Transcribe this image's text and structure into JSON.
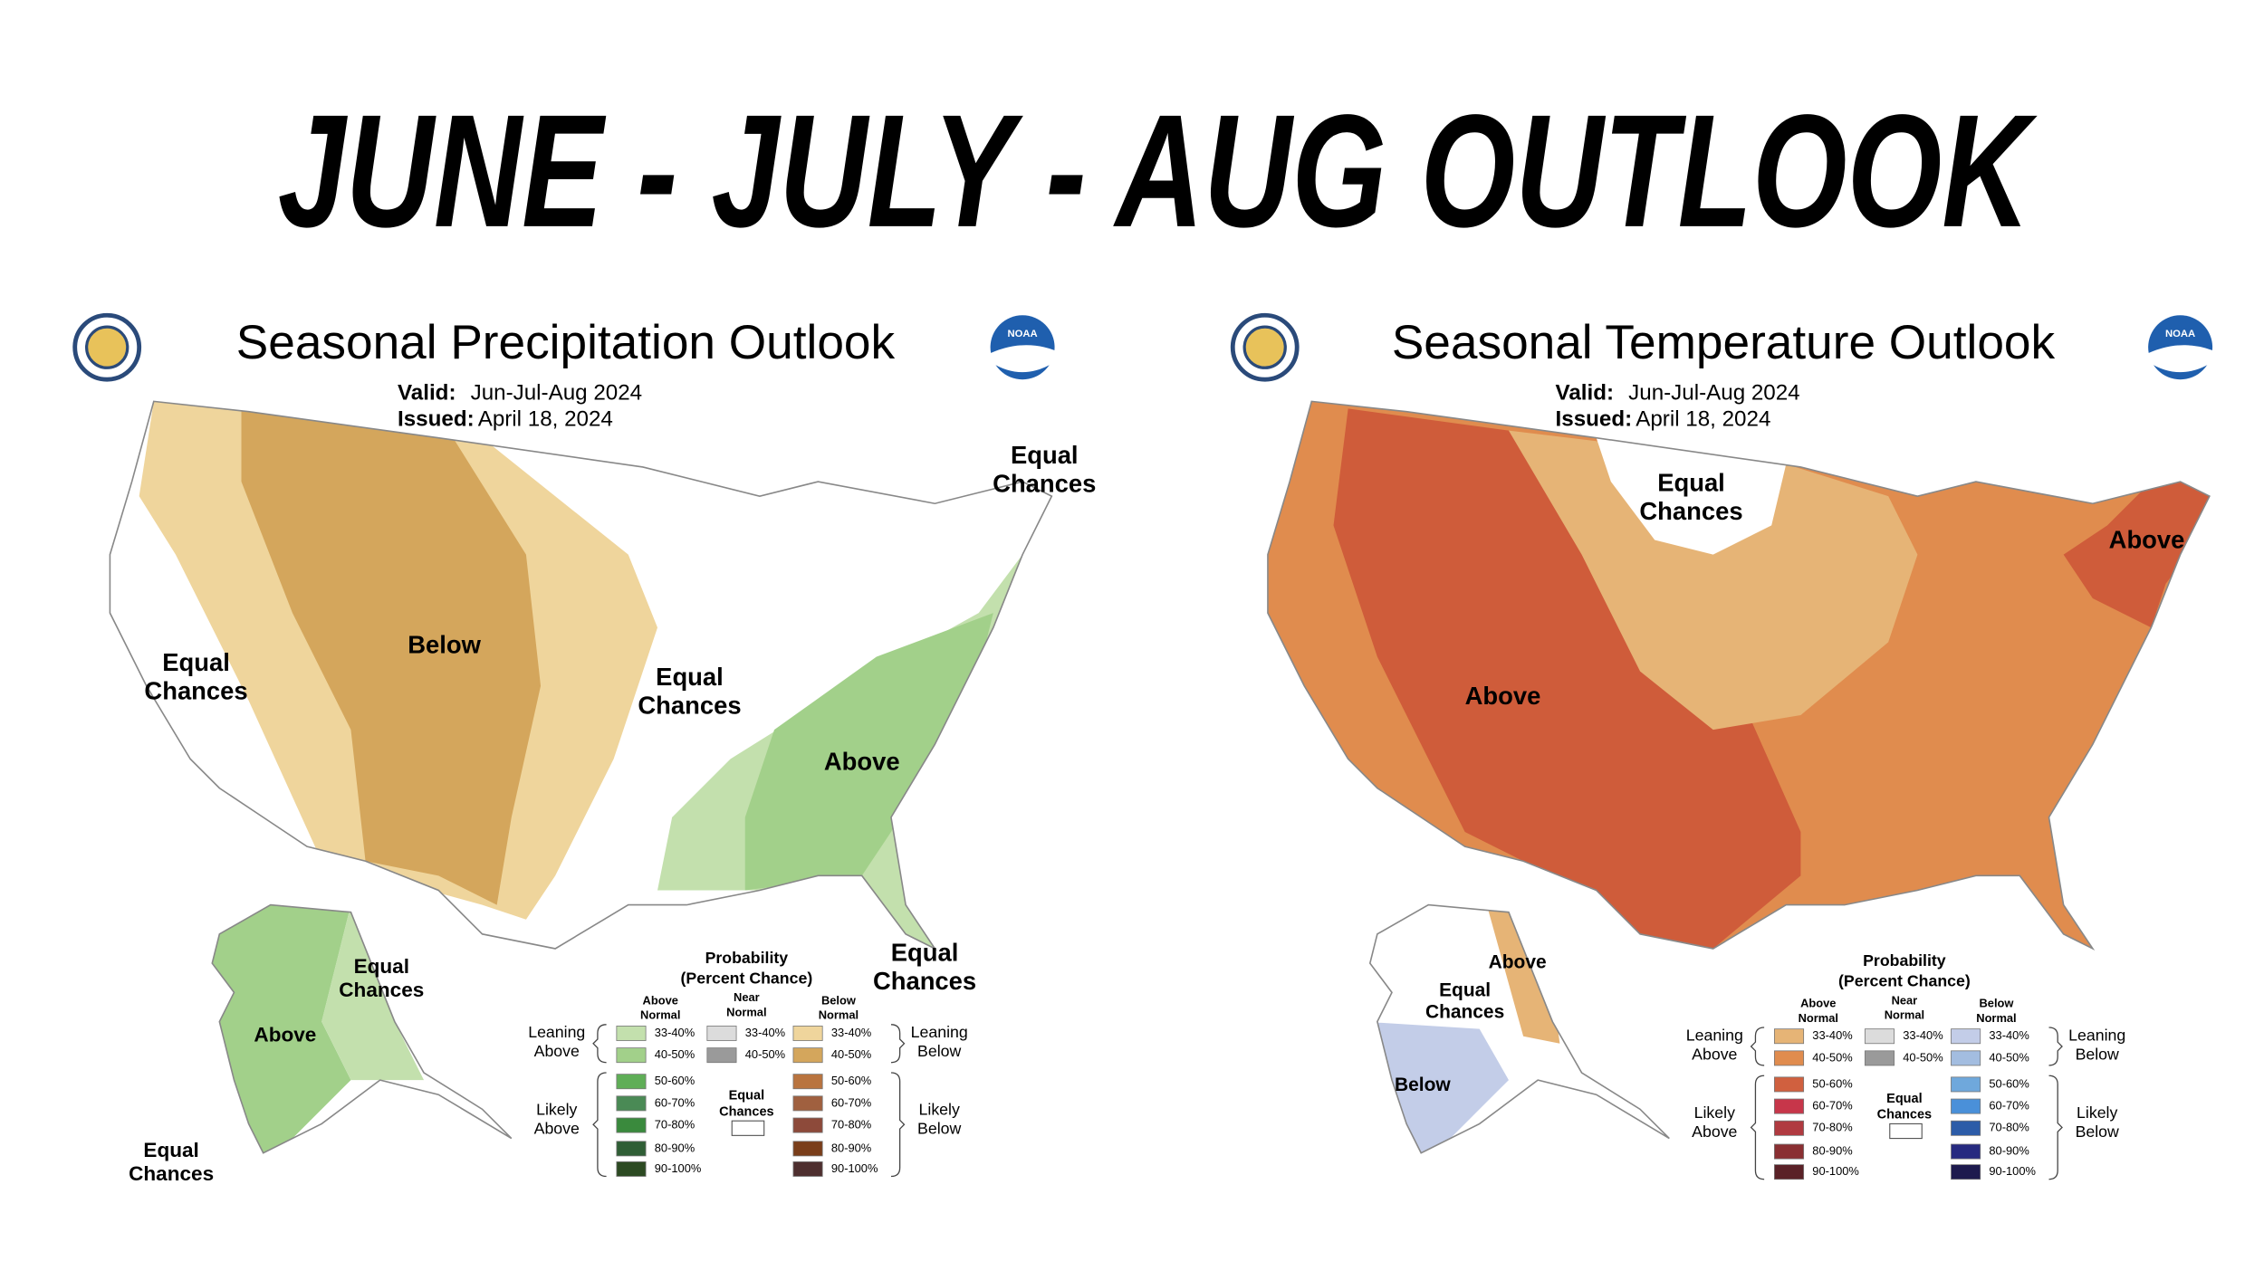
{
  "header": {
    "title": "JUNE - JULY - AUG OUTLOOK"
  },
  "panels": [
    {
      "title": "Seasonal Precipitation Outlook",
      "valid_label": "Valid:",
      "valid": "Jun-Jul-Aug 2024",
      "issued_label": "Issued:",
      "issued": "April 18, 2024",
      "logo": "NOAA",
      "map_labels": [
        [
          "Equal",
          "Chances"
        ],
        [
          "Below"
        ],
        [
          "Equal",
          "Chances"
        ],
        [
          "Above"
        ],
        [
          "Equal",
          "Chances"
        ],
        [
          "Equal",
          "Chances"
        ],
        [
          "Equal",
          "Chances"
        ],
        [
          "Above"
        ],
        [
          "Equal",
          "Chances"
        ]
      ],
      "legend": {
        "title": "Probability",
        "subtitle": "(Percent Chance)",
        "columns": [
          [
            "Above",
            "Normal"
          ],
          [
            "Near",
            "Normal"
          ],
          [
            "Below",
            "Normal"
          ]
        ],
        "above": [
          "33-40%",
          "40-50%",
          "50-60%",
          "60-70%",
          "70-80%",
          "80-90%",
          "90-100%"
        ],
        "near": [
          "33-40%",
          "40-50%"
        ],
        "below": [
          "33-40%",
          "40-50%",
          "50-60%",
          "60-70%",
          "70-80%",
          "80-90%",
          "90-100%"
        ],
        "leaning_above": [
          "Leaning",
          "Above"
        ],
        "likely_above": [
          "Likely",
          "Above"
        ],
        "leaning_below": [
          "Leaning",
          "Below"
        ],
        "likely_below": [
          "Likely",
          "Below"
        ],
        "equal_chances": [
          "Equal",
          "Chances"
        ]
      }
    },
    {
      "title": "Seasonal Temperature Outlook",
      "valid_label": "Valid:",
      "valid": "Jun-Jul-Aug 2024",
      "issued_label": "Issued:",
      "issued": "April 18, 2024",
      "logo": "NOAA",
      "map_labels": [
        [
          "Equal",
          "Chances"
        ],
        [
          "Above"
        ],
        [
          "Above"
        ],
        [
          "Above"
        ],
        [
          "Equal",
          "Chances"
        ],
        [
          "Below"
        ]
      ],
      "legend": {
        "title": "Probability",
        "subtitle": "(Percent Chance)",
        "columns": [
          [
            "Above",
            "Normal"
          ],
          [
            "Near",
            "Normal"
          ],
          [
            "Below",
            "Normal"
          ]
        ],
        "above": [
          "33-40%",
          "40-50%",
          "50-60%",
          "60-70%",
          "70-80%",
          "80-90%",
          "90-100%"
        ],
        "near": [
          "33-40%",
          "40-50%"
        ],
        "below": [
          "33-40%",
          "40-50%",
          "50-60%",
          "60-70%",
          "70-80%",
          "80-90%",
          "90-100%"
        ],
        "leaning_above": [
          "Leaning",
          "Above"
        ],
        "likely_above": [
          "Likely",
          "Above"
        ],
        "leaning_below": [
          "Leaning",
          "Below"
        ],
        "likely_below": [
          "Likely",
          "Below"
        ],
        "equal_chances": [
          "Equal",
          "Chances"
        ]
      }
    }
  ]
}
